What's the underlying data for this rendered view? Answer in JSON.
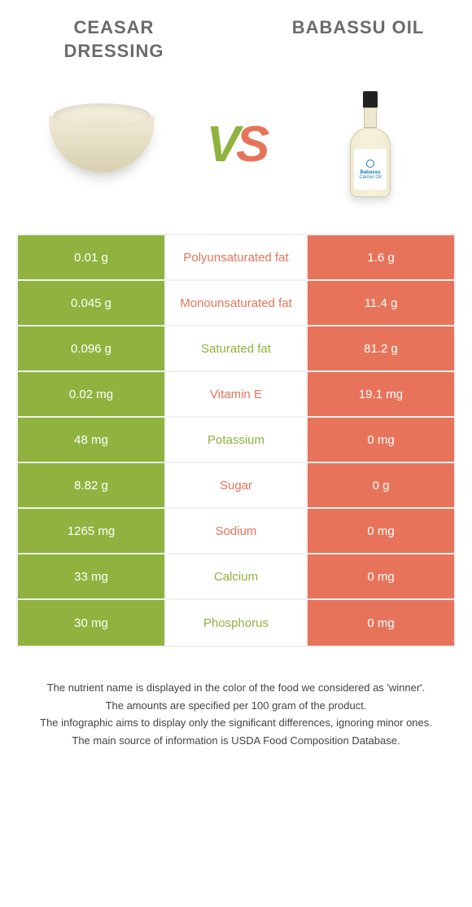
{
  "colors": {
    "left": "#8fb33e",
    "right": "#e7745a",
    "title": "#6b6b6b"
  },
  "products": {
    "left": {
      "title": "Ceasar dressing"
    },
    "right": {
      "title": "Babassu oil"
    }
  },
  "bottle": {
    "label_top": "Babassu",
    "label_bottom": "Carrier Oil"
  },
  "vs": {
    "v": "V",
    "s": "S"
  },
  "rows": [
    {
      "left": "0.01 g",
      "name": "Polyunsaturated fat",
      "right": "1.6 g",
      "winner": "right"
    },
    {
      "left": "0.045 g",
      "name": "Monounsaturated fat",
      "right": "11.4 g",
      "winner": "right"
    },
    {
      "left": "0.096 g",
      "name": "Saturated fat",
      "right": "81.2 g",
      "winner": "left"
    },
    {
      "left": "0.02 mg",
      "name": "Vitamin E",
      "right": "19.1 mg",
      "winner": "right"
    },
    {
      "left": "48 mg",
      "name": "Potassium",
      "right": "0 mg",
      "winner": "left"
    },
    {
      "left": "8.82 g",
      "name": "Sugar",
      "right": "0 g",
      "winner": "right"
    },
    {
      "left": "1265 mg",
      "name": "Sodium",
      "right": "0 mg",
      "winner": "right"
    },
    {
      "left": "33 mg",
      "name": "Calcium",
      "right": "0 mg",
      "winner": "left"
    },
    {
      "left": "30 mg",
      "name": "Phosphorus",
      "right": "0 mg",
      "winner": "left"
    }
  ],
  "footer": {
    "lines": [
      "The nutrient name is displayed in the color of the food we considered as 'winner'.",
      "The amounts are specified per 100 gram of the product.",
      "The infographic aims to display only the significant differences, ignoring minor ones.",
      "The main source of information is USDA Food Composition Database."
    ]
  }
}
